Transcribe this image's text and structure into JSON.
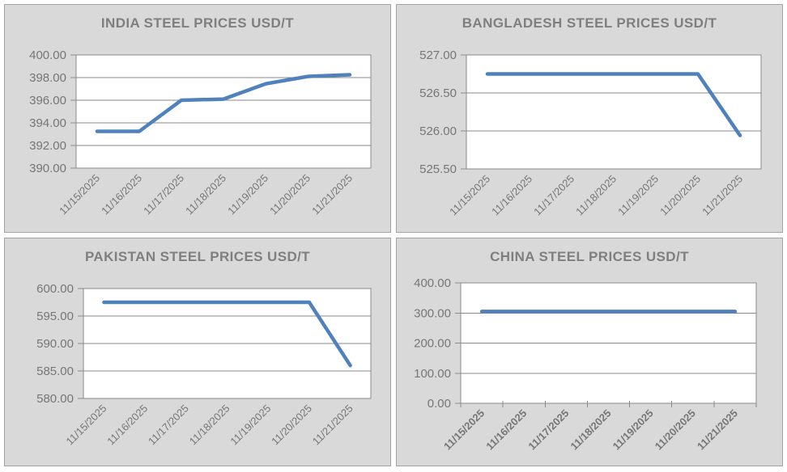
{
  "styles": {
    "page_background": "#FFFFFF",
    "panel_background": "#D9D9D9",
    "panel_border": "#A3A3A3",
    "plot_background": "#FFFFFF",
    "grid_color": "#8A8A8A",
    "line_color": "#4F81BD",
    "title_color": "#7F7F7F",
    "axis_label_color": "#767676"
  },
  "chart_data": [
    {
      "type": "line",
      "title": "INDIA STEEL PRICES USD/T",
      "xlabel": "",
      "ylabel": "",
      "legend": "none",
      "grid": true,
      "categories": [
        "11/15/2025",
        "11/16/2025",
        "11/17/2025",
        "11/18/2025",
        "11/19/2025",
        "11/20/2025",
        "11/21/2025"
      ],
      "values": [
        393.25,
        393.25,
        396.0,
        396.1,
        397.45,
        398.1,
        398.25
      ],
      "ylim": [
        390,
        400
      ],
      "yticks": [
        {
          "value": 390,
          "label": "390.00"
        },
        {
          "value": 392,
          "label": "392.00"
        },
        {
          "value": 394,
          "label": "394.00"
        },
        {
          "value": 396,
          "label": "396.00"
        },
        {
          "value": 398,
          "label": "398.00"
        },
        {
          "value": 400,
          "label": "400.00"
        }
      ],
      "x_axis_tick_marks": false,
      "x_label_bold": false
    },
    {
      "type": "line",
      "title": "BANGLADESH STEEL PRICES USD/T",
      "xlabel": "",
      "ylabel": "",
      "legend": "none",
      "grid": true,
      "categories": [
        "11/15/2025",
        "11/16/2025",
        "11/17/2025",
        "11/18/2025",
        "11/19/2025",
        "11/20/2025",
        "11/21/2025"
      ],
      "values": [
        526.75,
        526.75,
        526.75,
        526.75,
        526.75,
        526.75,
        525.94
      ],
      "ylim": [
        525.5,
        527
      ],
      "yticks": [
        {
          "value": 525.5,
          "label": "525.50"
        },
        {
          "value": 526.0,
          "label": "526.00"
        },
        {
          "value": 526.5,
          "label": "526.50"
        },
        {
          "value": 527.0,
          "label": "527.00"
        }
      ],
      "x_axis_tick_marks": false,
      "x_label_bold": false
    },
    {
      "type": "line",
      "title": "PAKISTAN STEEL PRICES USD/T",
      "xlabel": "",
      "ylabel": "",
      "legend": "none",
      "grid": true,
      "categories": [
        "11/15/2025",
        "11/16/2025",
        "11/17/2025",
        "11/18/2025",
        "11/19/2025",
        "11/20/2025",
        "11/21/2025"
      ],
      "values": [
        597.5,
        597.5,
        597.5,
        597.5,
        597.5,
        597.5,
        586.0
      ],
      "ylim": [
        580,
        600
      ],
      "yticks": [
        {
          "value": 580,
          "label": "580.00"
        },
        {
          "value": 585,
          "label": "585.00"
        },
        {
          "value": 590,
          "label": "590.00"
        },
        {
          "value": 595,
          "label": "595.00"
        },
        {
          "value": 600,
          "label": "600.00"
        }
      ],
      "x_axis_tick_marks": false,
      "x_label_bold": false
    },
    {
      "type": "line",
      "title": "CHINA STEEL PRICES USD/T",
      "xlabel": "",
      "ylabel": "",
      "legend": "none",
      "grid": true,
      "categories": [
        "11/15/2025",
        "11/16/2025",
        "11/17/2025",
        "11/18/2025",
        "11/19/2025",
        "11/20/2025",
        "11/21/2025"
      ],
      "values": [
        305,
        305,
        305,
        305,
        305,
        305,
        305
      ],
      "ylim": [
        0,
        400
      ],
      "yticks": [
        {
          "value": 0,
          "label": "0.00"
        },
        {
          "value": 100,
          "label": "100.00"
        },
        {
          "value": 200,
          "label": "200.00"
        },
        {
          "value": 300,
          "label": "300.00"
        },
        {
          "value": 400,
          "label": "400.00"
        }
      ],
      "x_axis_tick_marks": true,
      "x_label_bold": true
    }
  ]
}
